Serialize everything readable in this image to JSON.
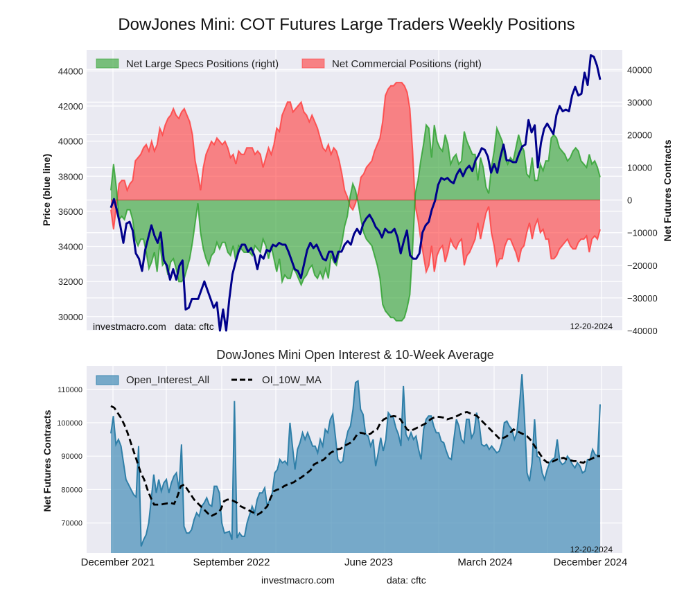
{
  "title": "DowJones Mini: COT Futures Large Traders Weekly Positions",
  "chart_data": [
    {
      "type": "line",
      "title": "DowJones Mini: COT Futures Large Traders Weekly Positions",
      "ylabel_left": "Price (blue line)",
      "ylabel_right": "Net Futures Contracts",
      "ylim_left": [
        29200,
        45200
      ],
      "ylim_right": [
        -40000,
        46000
      ],
      "yticks_left": [
        "30000",
        "32000",
        "34000",
        "36000",
        "38000",
        "40000",
        "42000",
        "44000"
      ],
      "yticks_right": [
        "-40000",
        "-30000",
        "-20000",
        "-10000",
        "0",
        "10000",
        "20000",
        "30000",
        "40000"
      ],
      "grid": true,
      "legend_position": "top-left",
      "legend": [
        "Net Large Specs Positions (right)",
        "Net Commercial Positions (right)"
      ],
      "annotation_left": "investmacro.com",
      "annotation_source": "data: cftc",
      "annotation_date": "12-20-2024",
      "colors": {
        "specs": "#2ca02c",
        "commercial": "#ff3b3b",
        "price": "#00008b"
      },
      "series": [
        {
          "name": "Price",
          "axis": "left",
          "values": [
            36200,
            36700,
            36000,
            35200,
            34200,
            35300,
            35400,
            34900,
            33600,
            33300,
            32600,
            33800,
            34500,
            35200,
            34600,
            34200,
            34800,
            33200,
            32900,
            32100,
            32700,
            32100,
            32900,
            33200,
            30400,
            30500,
            31000,
            31000,
            31000,
            31500,
            32000,
            31500,
            31000,
            30500,
            30800,
            29200,
            30400,
            29200,
            31000,
            32400,
            33100,
            33700,
            34100,
            34100,
            33700,
            33900,
            33500,
            32700,
            33500,
            33300,
            33800,
            33700,
            34100,
            34000,
            34200,
            34100,
            34100,
            33700,
            33200,
            32700,
            32600,
            32200,
            33000,
            33800,
            34200,
            33900,
            34100,
            33700,
            33300,
            33200,
            33700,
            33700,
            33100,
            33700,
            33700,
            34100,
            34300,
            34100,
            34700,
            35000,
            34700,
            35300,
            35600,
            35800,
            35500,
            35100,
            34900,
            34500,
            35000,
            34800,
            34800,
            35000,
            34500,
            33600,
            34300,
            34900,
            33500,
            33300,
            33300,
            33600,
            34800,
            35200,
            35400,
            36100,
            36600,
            37500,
            37900,
            37800,
            37900,
            37700,
            37600,
            38100,
            38400,
            38000,
            38400,
            38600,
            38300,
            38900,
            39200,
            39600,
            39500,
            39100,
            38200,
            38700,
            38200,
            39100,
            39800,
            38900,
            38900,
            38800,
            38800,
            39300,
            39700,
            39800,
            41200,
            40500,
            40900,
            38500,
            39900,
            40700,
            41000,
            40700,
            40400,
            41500,
            42000,
            41700,
            41800,
            41700,
            42600,
            43100,
            42600,
            42700,
            43900,
            43200,
            44900,
            44800,
            44300,
            43500
          ]
        },
        {
          "name": "Net Large Specs Positions (right)",
          "axis": "right",
          "values": [
            3000,
            11000,
            4000,
            -6000,
            -5000,
            -6000,
            -3000,
            -3000,
            -6000,
            -12000,
            -14000,
            -12000,
            -12000,
            -16000,
            -21000,
            -19000,
            -16000,
            -22000,
            -13000,
            -20000,
            -19000,
            -23000,
            -19000,
            -18000,
            -21000,
            -25000,
            -25000,
            -24000,
            -21000,
            -18000,
            -13000,
            -7000,
            -1000,
            -10000,
            -15000,
            -18000,
            -20000,
            -17000,
            -16000,
            -13000,
            -15000,
            -13000,
            -13000,
            -16000,
            -17000,
            -14000,
            -19000,
            -14000,
            -15000,
            -16000,
            -16000,
            -16000,
            -17000,
            -14000,
            -15000,
            -16000,
            -12000,
            -14000,
            -18000,
            -14000,
            -18000,
            -22000,
            -18000,
            -25000,
            -23000,
            -24000,
            -24000,
            -21000,
            -22000,
            -24000,
            -26000,
            -24000,
            -23000,
            -21000,
            -20000,
            -23000,
            -24000,
            -22000,
            -24000,
            -21000,
            -24000,
            -17000,
            -19000,
            -20000,
            -16000,
            -13000,
            -8000,
            -5000,
            1000,
            5000,
            3000,
            -1000,
            -6000,
            -10000,
            -12000,
            -13000,
            -14000,
            -17000,
            -20000,
            -24000,
            -32000,
            -34000,
            -35000,
            -36000,
            -36000,
            -37000,
            -37000,
            -37000,
            -36000,
            -33000,
            -29000,
            -15000,
            2000,
            6000,
            12000,
            17000,
            23000,
            22000,
            13000,
            23000,
            18000,
            16000,
            15000,
            20000,
            17000,
            11000,
            13000,
            14000,
            11000,
            12000,
            21000,
            18000,
            16000,
            14000,
            14000,
            6000,
            13000,
            10000,
            4000,
            2000,
            10000,
            15000,
            22000,
            20000,
            18000,
            13000,
            11000,
            13000,
            12000,
            16000,
            20000,
            17000,
            15000,
            8000,
            7000,
            13000,
            6000,
            6000,
            11000,
            9000,
            12000,
            12000,
            19000,
            20000,
            19000,
            16000,
            15000,
            14000,
            12000,
            13000,
            15000,
            16000,
            15000,
            12000,
            11000,
            10000,
            14000,
            11000,
            12000,
            10000,
            7000
          ]
        },
        {
          "name": "Net Commercial Positions (right)",
          "axis": "right",
          "values": [
            -3000,
            -9000,
            -2000,
            5000,
            6000,
            6000,
            3000,
            5000,
            6000,
            12000,
            13000,
            14000,
            16000,
            17000,
            15000,
            18000,
            15000,
            17000,
            22000,
            20000,
            23000,
            25000,
            26000,
            28000,
            26000,
            25000,
            27000,
            28000,
            26000,
            24000,
            20000,
            12000,
            8000,
            3000,
            10000,
            14000,
            16000,
            18000,
            17000,
            19000,
            18000,
            17000,
            18000,
            16000,
            13000,
            14000,
            11000,
            15000,
            14000,
            14000,
            16000,
            16000,
            16000,
            14000,
            15000,
            14000,
            10000,
            13000,
            16000,
            14000,
            17000,
            22000,
            21000,
            26000,
            28000,
            30000,
            30000,
            27000,
            28000,
            29000,
            30000,
            27000,
            26000,
            24000,
            26000,
            24000,
            22000,
            19000,
            16000,
            15000,
            17000,
            14000,
            16000,
            15000,
            12000,
            8000,
            3000,
            1000,
            -2000,
            -3000,
            -1000,
            2000,
            7000,
            8000,
            10000,
            11000,
            12000,
            15000,
            17000,
            19000,
            24000,
            32000,
            34000,
            35000,
            35000,
            36000,
            36000,
            36000,
            35000,
            33000,
            28000,
            15000,
            -2000,
            -6000,
            -12000,
            -17000,
            -22000,
            -20000,
            -14000,
            -22000,
            -17000,
            -15000,
            -14000,
            -19000,
            -16000,
            -12000,
            -14000,
            -15000,
            -13000,
            -12000,
            -20000,
            -17000,
            -16000,
            -14000,
            -12000,
            -7000,
            -12000,
            -8000,
            -4000,
            -2000,
            -10000,
            -14000,
            -20000,
            -18000,
            -18000,
            -14000,
            -12000,
            -12000,
            -14000,
            -16000,
            -19000,
            -15000,
            -14000,
            -10000,
            -7000,
            -12000,
            -8000,
            -6000,
            -10000,
            -9000,
            -12000,
            -12000,
            -18000,
            -18000,
            -17000,
            -15000,
            -14000,
            -13000,
            -12000,
            -14000,
            -15000,
            -15000,
            -13000,
            -12000,
            -12000,
            -11000,
            -16000,
            -12000,
            -11000,
            -12000,
            -9000
          ]
        }
      ]
    },
    {
      "type": "area",
      "title": "DowJones Mini Open Interest & 10-Week Average",
      "ylabel": "Net Futures Contracts",
      "ylim": [
        61000,
        117000
      ],
      "yticks": [
        "70000",
        "80000",
        "90000",
        "100000",
        "110000"
      ],
      "xticks": [
        "December 2021",
        "September 2022",
        "June 2023",
        "March 2024",
        "December 2024"
      ],
      "grid": true,
      "legend_position": "top-left",
      "legend": [
        "Open_Interest_All",
        "OI_10W_MA"
      ],
      "annotation_date": "12-20-2024",
      "colors": {
        "area": "#4f93bb",
        "ma": "#000000"
      },
      "series": [
        {
          "name": "Open_Interest_All",
          "values": [
            96800,
            102000,
            93500,
            95000,
            93000,
            88000,
            83000,
            81500,
            80000,
            78500,
            77800,
            93000,
            63000,
            65000,
            66500,
            70000,
            77000,
            84500,
            79000,
            83000,
            79500,
            82000,
            83000,
            79000,
            82000,
            84000,
            85000,
            80000,
            93500,
            69000,
            67000,
            67000,
            68000,
            71000,
            73000,
            72000,
            75000,
            76000,
            77500,
            75500,
            75000,
            81000,
            81000,
            79000,
            70000,
            67000,
            67200,
            67500,
            65000,
            106500,
            65500,
            67000,
            66000,
            66000,
            70000,
            72500,
            75000,
            73000,
            77000,
            79000,
            79000,
            80500,
            75000,
            77000,
            79000,
            85000,
            86000,
            89000,
            88000,
            88500,
            87500,
            100000,
            93000,
            86000,
            92000,
            94000,
            97000,
            95000,
            97000,
            95000,
            93000,
            93000,
            91000,
            95000,
            93000,
            98000,
            97000,
            101000,
            102500,
            96000,
            89000,
            88000,
            88500,
            94000,
            97500,
            99000,
            104000,
            112000,
            112500,
            104000,
            102500,
            96500,
            96000,
            93000,
            95000,
            87000,
            91000,
            95500,
            91500,
            95000,
            103000,
            102000,
            101500,
            98500,
            96500,
            93000,
            111000,
            96500,
            95000,
            97000,
            95000,
            96000,
            92000,
            89000,
            98000,
            101000,
            102000,
            102000,
            99000,
            97000,
            97000,
            94500,
            94000,
            91500,
            89500,
            89000,
            95000,
            101000,
            99000,
            95000,
            94000,
            101000,
            101000,
            95500,
            97000,
            103000,
            100000,
            93500,
            93000,
            93500,
            92000,
            93000,
            92000,
            91000,
            91500,
            94000,
            100000,
            100500,
            99000,
            98000,
            95000,
            97000,
            105000,
            114500,
            101500,
            85000,
            82500,
            88000,
            101000,
            90000,
            89500,
            85000,
            83000,
            86000,
            88000,
            89000,
            89500,
            95000,
            88500,
            87500,
            88000,
            90000,
            89000,
            87500,
            86500,
            88000,
            87000,
            85000,
            85500,
            89000,
            89000,
            92000,
            90500,
            90000,
            105500
          ]
        },
        {
          "name": "OI_10W_MA",
          "values": [
            105000,
            104500,
            103000,
            101500,
            99500,
            97000,
            94000,
            91000,
            88000,
            85000,
            83000,
            80000,
            77500,
            75500,
            75500,
            75500,
            75700,
            75900,
            76000,
            75700,
            78000,
            81000,
            81500,
            80000,
            78500,
            77000,
            76000,
            75000,
            74000,
            73000,
            72000,
            72500,
            73000,
            74000,
            76500,
            77000,
            77000,
            76500,
            76000,
            75000,
            74500,
            74000,
            73500,
            73000,
            72500,
            73000,
            74000,
            75000,
            77500,
            79500,
            80000,
            80200,
            81000,
            81500,
            81800,
            82200,
            83000,
            83500,
            84200,
            85000,
            85800,
            87500,
            88000,
            88500,
            89000,
            90000,
            91000,
            91500,
            92000,
            92200,
            93000,
            93500,
            94000,
            95000,
            96500,
            97000,
            96800,
            96300,
            96700,
            97500,
            98000,
            100000,
            101000,
            101500,
            101800,
            102000,
            101800,
            101000,
            99500,
            98000,
            97500,
            98000,
            98500,
            99000,
            99500,
            100000,
            101000,
            101500,
            101800,
            101700,
            101500,
            101000,
            101300,
            101500,
            102000,
            102500,
            103000,
            103200,
            102800,
            102500,
            102000,
            101000,
            100000,
            99000,
            98000,
            97000,
            96000,
            95000,
            95500,
            96000,
            97000,
            98000,
            97500,
            97000,
            96500,
            96000,
            95000,
            93500,
            92000,
            90500,
            89000,
            88200,
            88000,
            88500,
            89000,
            89300,
            89500,
            89000,
            88800,
            88500,
            88500,
            88200,
            88000,
            88800,
            89000,
            89500,
            90000,
            90000
          ]
        }
      ]
    }
  ],
  "footer": {
    "site": "investmacro.com",
    "source": "data: cftc"
  }
}
